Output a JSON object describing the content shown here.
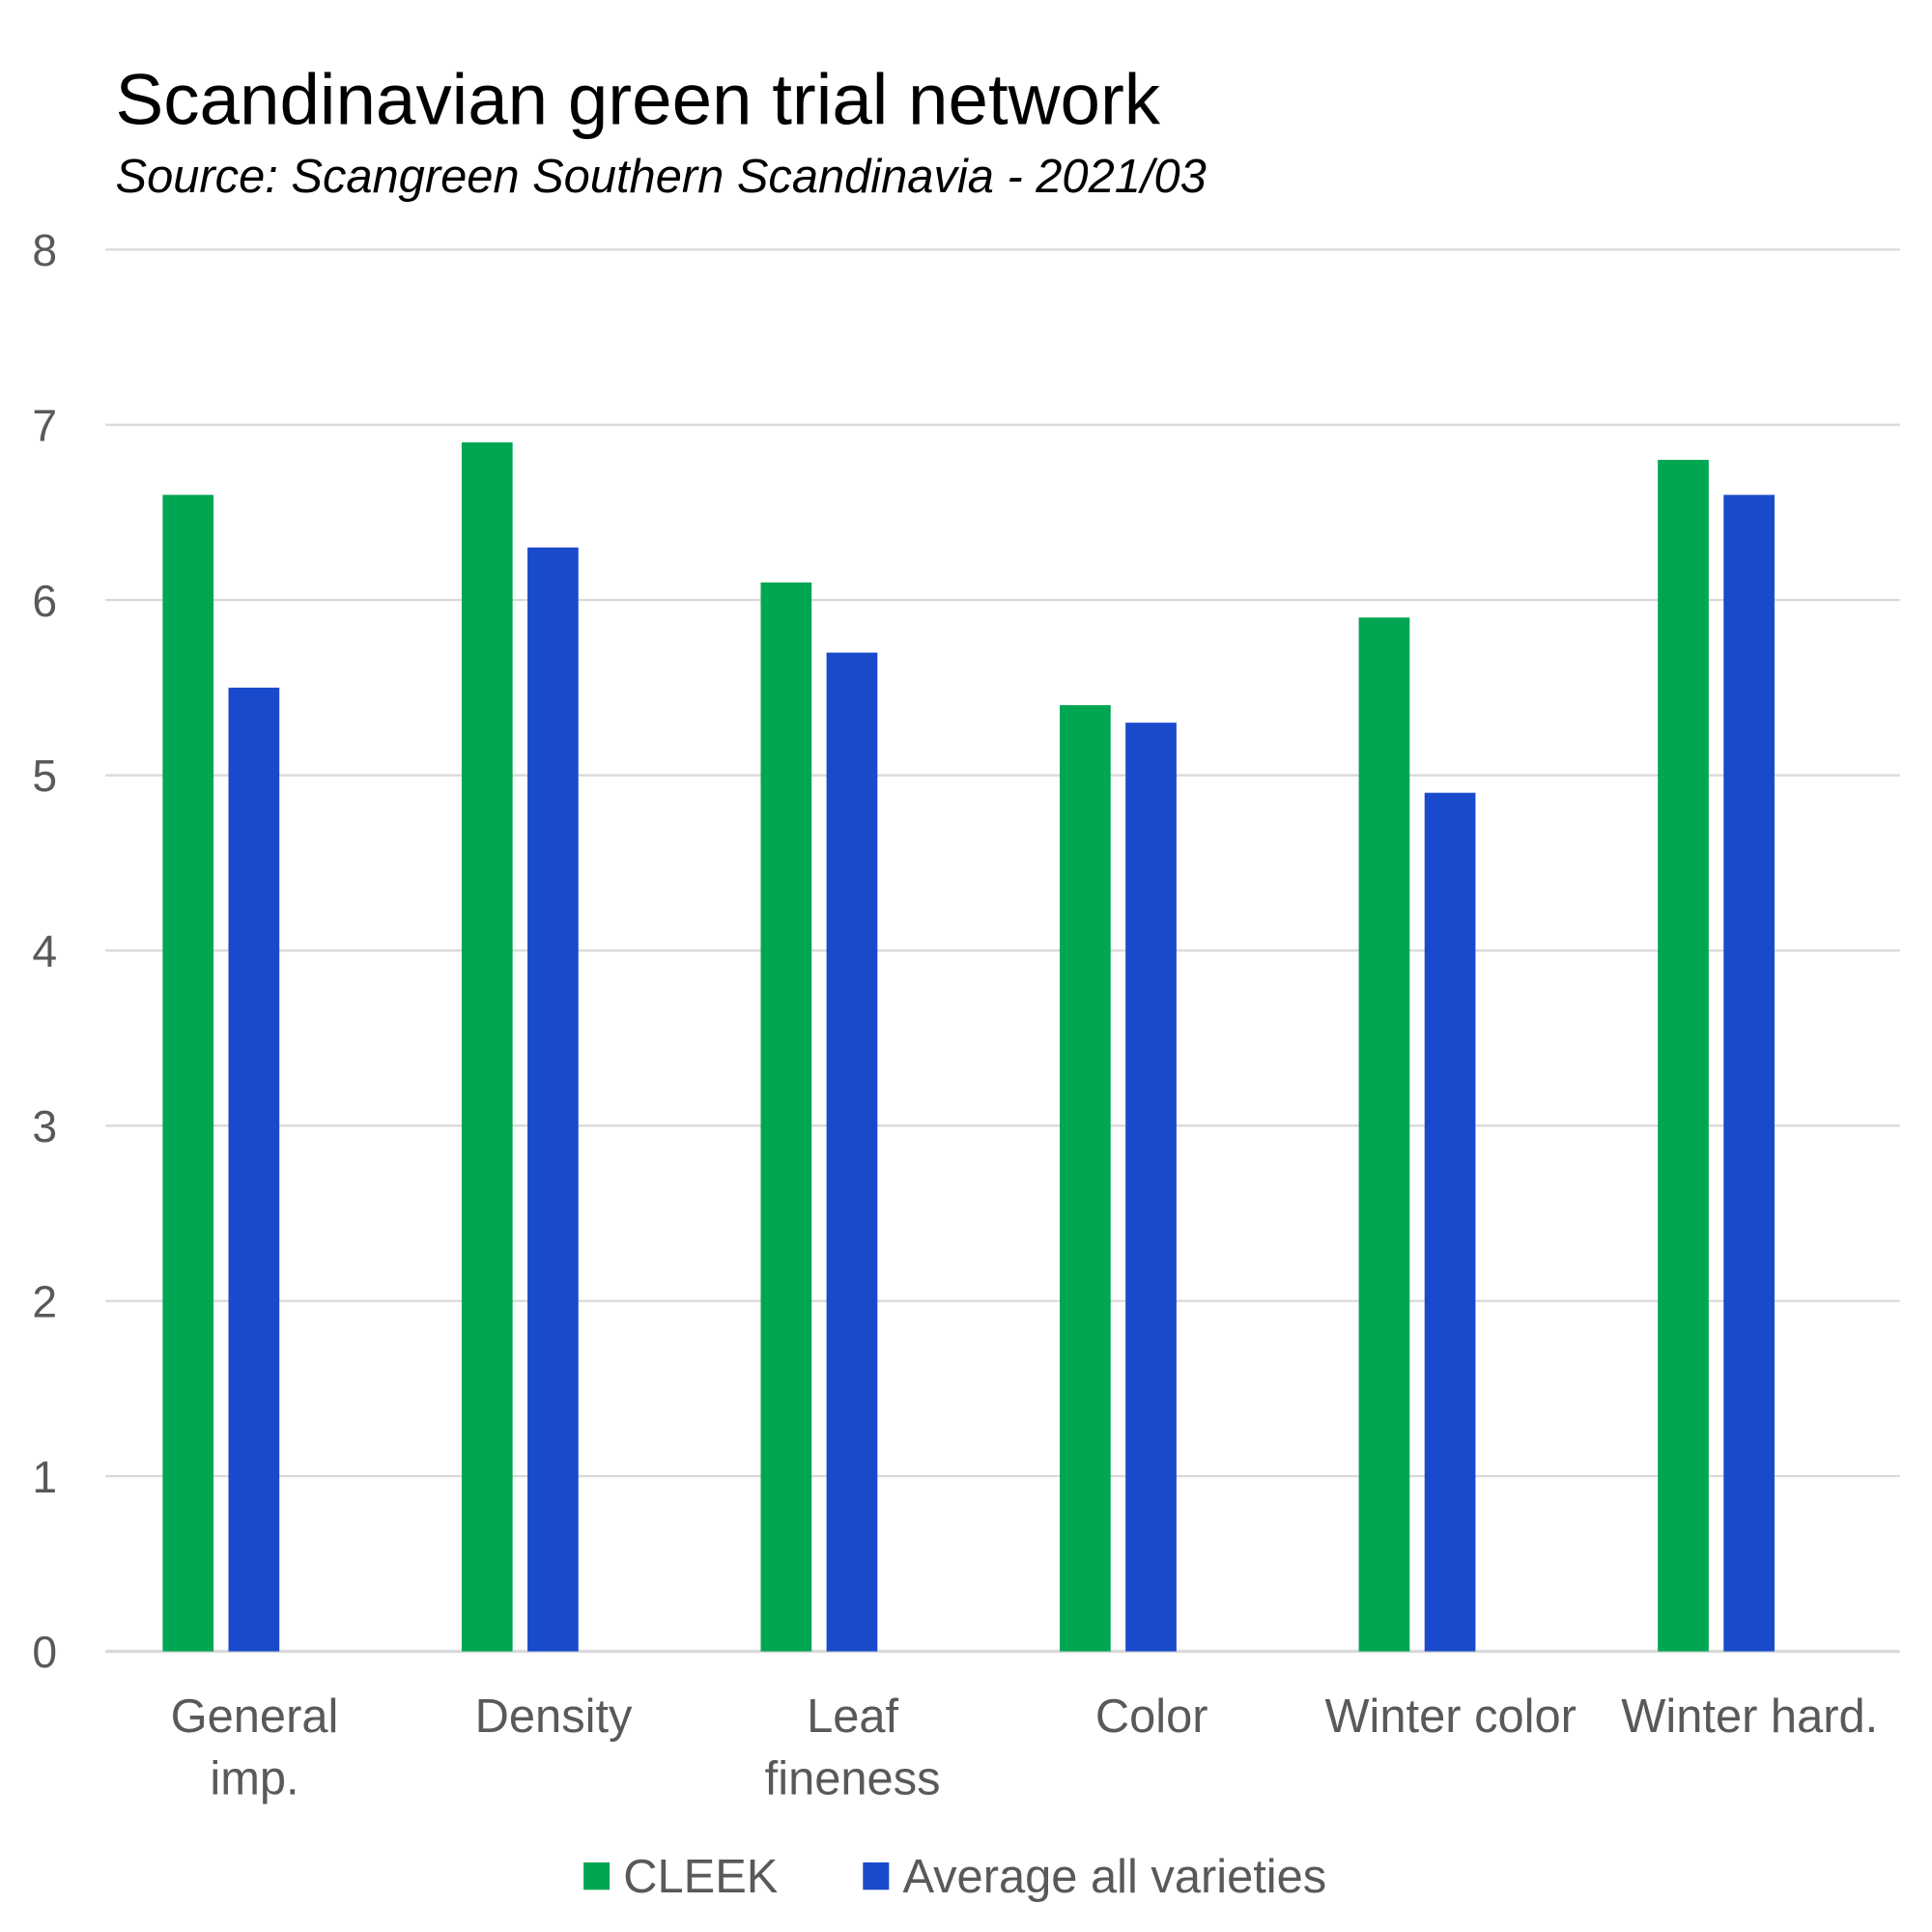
{
  "chart_data": {
    "type": "bar",
    "title": "Scandinavian green trial network",
    "subtitle": "Source: Scangreen Southern Scandinavia - 2021/03",
    "categories": [
      [
        "General",
        "imp."
      ],
      [
        "Density"
      ],
      [
        "Leaf",
        "fineness"
      ],
      [
        "Color"
      ],
      [
        "Winter color"
      ],
      [
        "Winter hard."
      ]
    ],
    "series": [
      {
        "name": "CLEEK",
        "color": "#00a651",
        "values": [
          6.6,
          6.9,
          6.1,
          5.4,
          5.9,
          6.8
        ]
      },
      {
        "name": "Average all varieties",
        "color": "#1a4acc",
        "values": [
          5.5,
          6.3,
          5.7,
          5.3,
          4.9,
          6.6
        ]
      }
    ],
    "ylim": [
      0,
      8
    ],
    "yticks": [
      "0",
      "1",
      "2",
      "3",
      "4",
      "5",
      "6",
      "7",
      "8"
    ],
    "grid": true,
    "legend": "bottom-center",
    "xlabel": "",
    "ylabel": ""
  }
}
